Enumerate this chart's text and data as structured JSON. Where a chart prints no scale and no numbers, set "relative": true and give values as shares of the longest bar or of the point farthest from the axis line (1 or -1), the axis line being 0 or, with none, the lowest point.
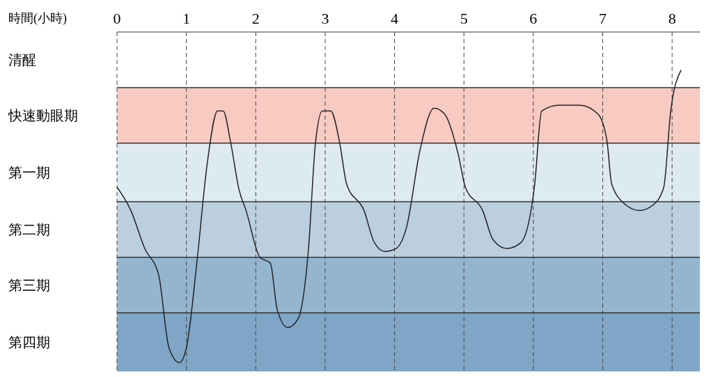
{
  "chart_data": {
    "type": "line",
    "xlabel": "時間(小時)",
    "relative": true,
    "x": [
      0,
      0.2,
      0.4,
      0.6,
      0.75,
      0.9,
      1.0,
      1.15,
      1.3,
      1.45,
      1.53,
      1.64,
      1.76,
      1.86,
      2.06,
      2.21,
      2.31,
      2.46,
      2.61,
      2.76,
      2.86,
      2.96,
      3.08,
      3.21,
      3.31,
      3.56,
      3.71,
      3.86,
      4.02,
      4.17,
      4.37,
      4.57,
      4.72,
      4.92,
      5.02,
      5.27,
      5.42,
      5.62,
      5.82,
      6.02,
      6.12,
      6.37,
      6.67,
      6.93,
      7.06,
      7.13,
      7.33,
      7.53,
      7.73,
      7.88,
      7.98,
      8.13
    ],
    "series": [
      {
        "color": "#222222",
        "values": [
          0.6,
          0.52,
          0.39,
          0.3,
          0.05,
          0,
          0.05,
          0.34,
          0.68,
          0.86,
          0.86,
          0.75,
          0.59,
          0.52,
          0.36,
          0.34,
          0.18,
          0.12,
          0.15,
          0.39,
          0.75,
          0.86,
          0.86,
          0.75,
          0.61,
          0.52,
          0.41,
          0.38,
          0.39,
          0.46,
          0.73,
          0.87,
          0.85,
          0.71,
          0.6,
          0.52,
          0.42,
          0.39,
          0.41,
          0.61,
          0.86,
          0.88,
          0.88,
          0.85,
          0.76,
          0.61,
          0.54,
          0.52,
          0.54,
          0.6,
          0.86,
          1
        ]
      }
    ],
    "xlim": [
      0,
      8.4
    ],
    "xticks": [
      0,
      1,
      2,
      3,
      4,
      5,
      6,
      7,
      8
    ],
    "annotations": [
      "第四期",
      "第三期",
      "第二期",
      "第一期",
      "快速動眼期",
      "清醒"
    ],
    "bands": [
      {
        "axis": "y",
        "from": -0.03,
        "to": 0.17,
        "color": "#7fa6c6"
      },
      {
        "axis": "y",
        "from": 0.17,
        "to": 0.36,
        "color": "#94b5cf"
      },
      {
        "axis": "y",
        "from": 0.36,
        "to": 0.55,
        "color": "#bccfdf"
      },
      {
        "axis": "y",
        "from": 0.55,
        "to": 0.75,
        "color": "#deeaf1"
      },
      {
        "axis": "y",
        "from": 0.75,
        "to": 0.94,
        "color": "#f8cbc2"
      }
    ],
    "grid": "x",
    "line_style": "solid",
    "marker": "none"
  }
}
